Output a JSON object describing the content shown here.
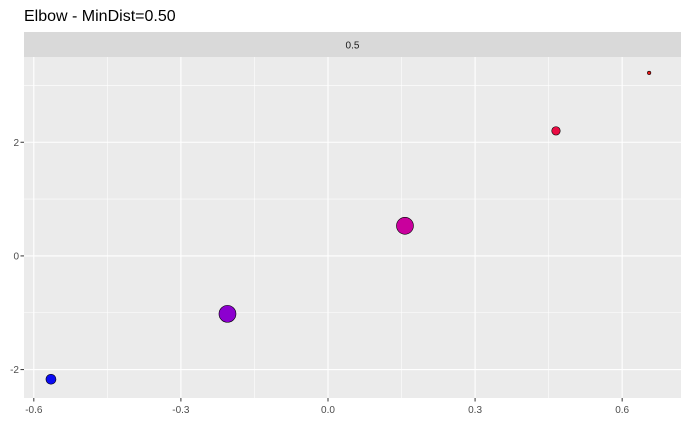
{
  "chart_data": {
    "type": "scatter",
    "title": "Elbow - MinDist=0.50",
    "facet_label": "0.5",
    "xlabel": "",
    "ylabel": "",
    "xlim": [
      -0.62,
      0.72
    ],
    "ylim": [
      -2.5,
      3.5
    ],
    "x_ticks": [
      {
        "value": -0.6,
        "label": "-0.6"
      },
      {
        "value": -0.3,
        "label": "-0.3"
      },
      {
        "value": 0.0,
        "label": "0.0"
      },
      {
        "value": 0.3,
        "label": "0.3"
      },
      {
        "value": 0.6,
        "label": "0.6"
      }
    ],
    "y_ticks": [
      {
        "value": -2,
        "label": "-2"
      },
      {
        "value": 0,
        "label": "0"
      },
      {
        "value": 2,
        "label": "2"
      }
    ],
    "grid": true,
    "legend": "none",
    "points": [
      {
        "x": -0.565,
        "y": -2.17,
        "size": 9,
        "color": "#0a0af2"
      },
      {
        "x": -0.205,
        "y": -1.02,
        "size": 16,
        "color": "#8c00cf"
      },
      {
        "x": 0.157,
        "y": 0.53,
        "size": 16,
        "color": "#c9009d"
      },
      {
        "x": 0.465,
        "y": 2.2,
        "size": 7.5,
        "color": "#ea0c43"
      },
      {
        "x": 0.655,
        "y": 3.22,
        "size": 2.5,
        "color": "#e81717"
      }
    ],
    "colors": {
      "panel_bg": "#ebebeb",
      "strip_bg": "#d9d9d9",
      "grid_major": "#ffffff",
      "point_stroke": "#000000"
    }
  }
}
